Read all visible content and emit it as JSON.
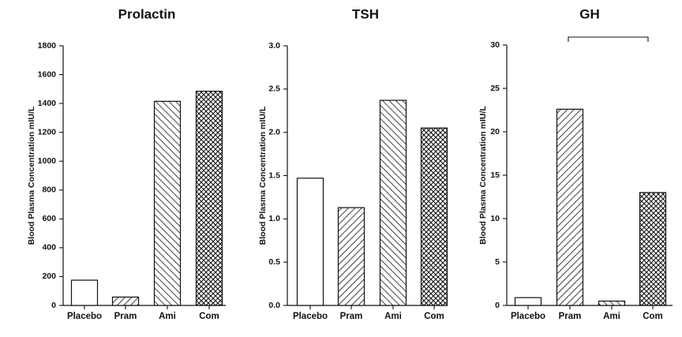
{
  "chart_data": [
    {
      "type": "bar",
      "title": "Prolactin",
      "ylabel": "Blood Plasma Concentration mIU/L",
      "categories": [
        "Placebo",
        "Pram",
        "Ami",
        "Com"
      ],
      "values": [
        175,
        58,
        1415,
        1485
      ],
      "patterns": [
        "none",
        "diag-right",
        "diag-left",
        "crosshatch"
      ],
      "ylim": [
        0,
        1800
      ],
      "yticks": [
        "0",
        "200",
        "400",
        "600",
        "800",
        "1000",
        "1200",
        "1400",
        "1600",
        "1800"
      ],
      "grid": false
    },
    {
      "type": "bar",
      "title": "TSH",
      "ylabel": "Blood Plasma Concentration mIU/L",
      "categories": [
        "Placebo",
        "Pram",
        "Ami",
        "Com"
      ],
      "values": [
        1.47,
        1.13,
        2.37,
        2.05
      ],
      "patterns": [
        "none",
        "diag-right",
        "diag-left",
        "crosshatch"
      ],
      "ylim": [
        0,
        3.0
      ],
      "yticks": [
        "0.0",
        "0.5",
        "1.0",
        "1.5",
        "2.0",
        "2.5",
        "3.0"
      ],
      "grid": false
    },
    {
      "type": "bar",
      "title": "GH",
      "ylabel": "Blood Plasma Concentration mIU/L",
      "categories": [
        "Placebo",
        "Pram",
        "Ami",
        "Com"
      ],
      "values": [
        0.9,
        22.6,
        0.5,
        13.0
      ],
      "patterns": [
        "none",
        "diag-right",
        "diag-left",
        "crosshatch"
      ],
      "ylim": [
        0,
        30
      ],
      "yticks": [
        "0",
        "5",
        "10",
        "15",
        "20",
        "25",
        "30"
      ],
      "grid": false,
      "bracket": [
        "Pram",
        "Com"
      ]
    }
  ]
}
